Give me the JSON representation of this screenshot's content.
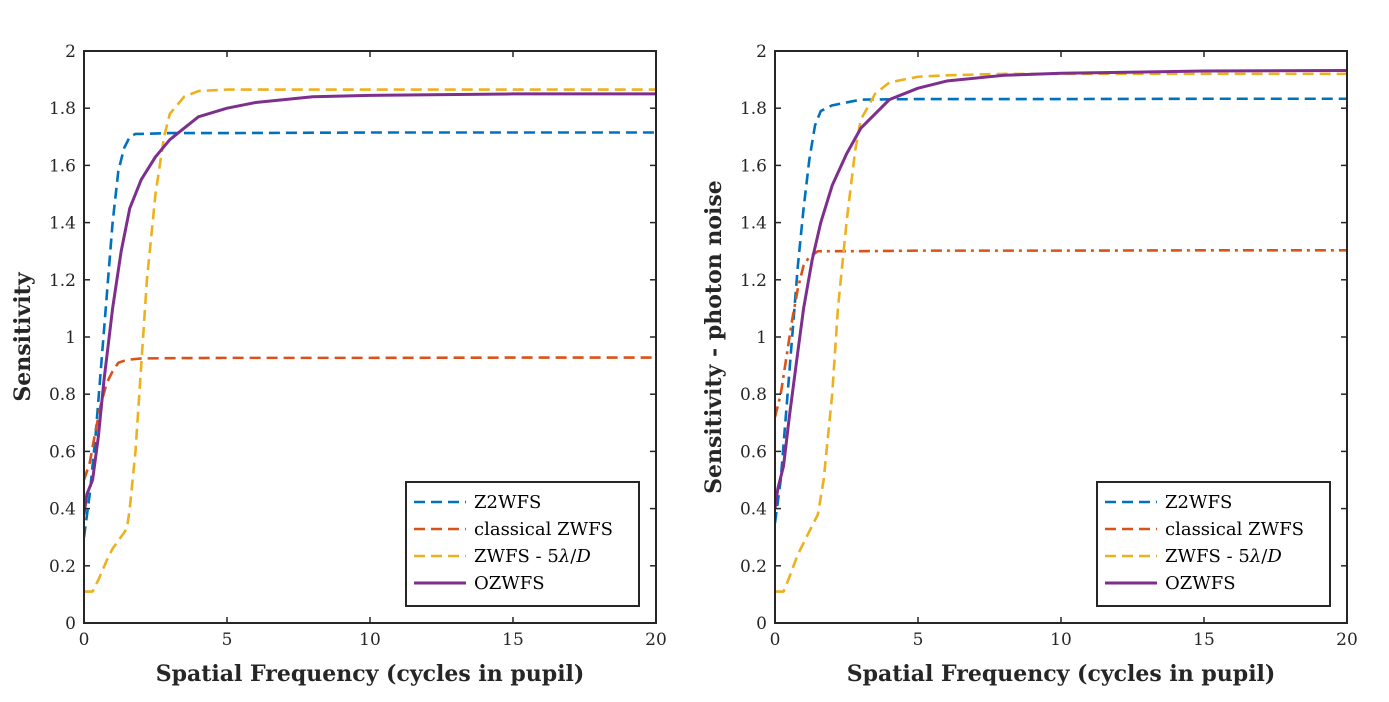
{
  "chart_data": [
    {
      "type": "line",
      "title": "",
      "xlabel": "Spatial Frequency (cycles in pupil)",
      "ylabel": "Sensitivity",
      "xlim": [
        0,
        20
      ],
      "ylim": [
        0,
        2
      ],
      "xticks": [
        0,
        5,
        10,
        15,
        20
      ],
      "yticks": [
        0,
        0.2,
        0.4,
        0.6,
        0.8,
        1,
        1.2,
        1.4,
        1.6,
        1.8,
        2
      ],
      "xtick_labels": [
        "0",
        "5",
        "10",
        "15",
        "20"
      ],
      "ytick_labels": [
        "0",
        "0.2",
        "0.4",
        "0.6",
        "0.8",
        "1",
        "1.2",
        "1.4",
        "1.6",
        "1.8",
        "2"
      ],
      "legend_position": "bottom-right",
      "series": [
        {
          "name": "Z2WFS",
          "style": "dashed",
          "color": "#0072BD",
          "x": [
            0,
            0.2,
            0.4,
            0.6,
            0.8,
            1.0,
            1.2,
            1.4,
            1.6,
            1.8,
            2.0,
            3.0,
            5,
            10,
            15,
            20
          ],
          "y": [
            0.3,
            0.45,
            0.65,
            0.9,
            1.15,
            1.4,
            1.58,
            1.66,
            1.7,
            1.71,
            1.71,
            1.713,
            1.713,
            1.715,
            1.715,
            1.715
          ]
        },
        {
          "name": "classical ZWFS",
          "style": "dashed",
          "color": "#D95319",
          "x": [
            0,
            0.2,
            0.4,
            0.6,
            0.8,
            1.0,
            1.2,
            1.5,
            2.0,
            3,
            5,
            10,
            15,
            20
          ],
          "y": [
            0.5,
            0.56,
            0.67,
            0.77,
            0.84,
            0.88,
            0.91,
            0.92,
            0.925,
            0.926,
            0.927,
            0.927,
            0.928,
            0.928
          ]
        },
        {
          "name": "ZWFS - 5λ/D",
          "style": "dashed",
          "color": "#EDB120",
          "x": [
            0,
            0.3,
            0.5,
            0.8,
            1.0,
            1.5,
            1.6,
            1.8,
            2.0,
            2.2,
            2.5,
            2.8,
            3.0,
            3.5,
            4,
            5,
            6,
            10,
            15,
            20
          ],
          "y": [
            0.11,
            0.11,
            0.15,
            0.22,
            0.26,
            0.33,
            0.4,
            0.6,
            0.9,
            1.2,
            1.5,
            1.7,
            1.78,
            1.84,
            1.86,
            1.865,
            1.865,
            1.865,
            1.865,
            1.865
          ]
        },
        {
          "name": "OZWFS",
          "style": "solid",
          "color": "#7E2F8E",
          "x": [
            0,
            0.1,
            0.3,
            0.5,
            0.7,
            1.0,
            1.3,
            1.6,
            2.0,
            2.5,
            3.0,
            3.5,
            4.0,
            5,
            6,
            8,
            10,
            15,
            20
          ],
          "y": [
            0.38,
            0.45,
            0.5,
            0.65,
            0.85,
            1.1,
            1.3,
            1.45,
            1.55,
            1.63,
            1.69,
            1.73,
            1.77,
            1.8,
            1.82,
            1.84,
            1.845,
            1.85,
            1.85
          ]
        }
      ]
    },
    {
      "type": "line",
      "title": "",
      "xlabel": "Spatial Frequency (cycles in pupil)",
      "ylabel": "Sensitivity - photon noise",
      "xlim": [
        0,
        20
      ],
      "ylim": [
        0,
        2
      ],
      "xticks": [
        0,
        5,
        10,
        15,
        20
      ],
      "yticks": [
        0,
        0.2,
        0.4,
        0.6,
        0.8,
        1,
        1.2,
        1.4,
        1.6,
        1.8,
        2
      ],
      "xtick_labels": [
        "0",
        "5",
        "10",
        "15",
        "20"
      ],
      "ytick_labels": [
        "0",
        "0.2",
        "0.4",
        "0.6",
        "0.8",
        "1",
        "1.2",
        "1.4",
        "1.6",
        "1.8",
        "2"
      ],
      "legend_position": "bottom-right",
      "series": [
        {
          "name": "Z2WFS",
          "style": "dashed",
          "color": "#0072BD",
          "x": [
            0,
            0.2,
            0.4,
            0.6,
            0.8,
            1.0,
            1.2,
            1.4,
            1.6,
            2.0,
            3.0,
            5,
            10,
            15,
            20
          ],
          "y": [
            0.35,
            0.5,
            0.75,
            1.0,
            1.25,
            1.45,
            1.62,
            1.74,
            1.79,
            1.81,
            1.83,
            1.832,
            1.832,
            1.833,
            1.833
          ]
        },
        {
          "name": "classical ZWFS",
          "style": "dashdot",
          "color": "#D95319",
          "x": [
            0,
            0.2,
            0.4,
            0.6,
            0.8,
            1.0,
            1.2,
            1.5,
            2.0,
            3,
            5,
            10,
            15,
            20
          ],
          "y": [
            0.72,
            0.8,
            0.93,
            1.06,
            1.17,
            1.25,
            1.28,
            1.3,
            1.3,
            1.3,
            1.302,
            1.302,
            1.303,
            1.303
          ]
        },
        {
          "name": "ZWFS - 5λ/D",
          "style": "dashed",
          "color": "#EDB120",
          "x": [
            0,
            0.3,
            0.5,
            0.8,
            1.0,
            1.5,
            1.7,
            2.0,
            2.2,
            2.5,
            2.8,
            3.0,
            3.5,
            4,
            5,
            6,
            8,
            10,
            15,
            20
          ],
          "y": [
            0.11,
            0.11,
            0.16,
            0.24,
            0.28,
            0.38,
            0.5,
            0.8,
            1.1,
            1.4,
            1.65,
            1.76,
            1.85,
            1.89,
            1.91,
            1.915,
            1.92,
            1.92,
            1.92,
            1.92
          ]
        },
        {
          "name": "OZWFS",
          "style": "solid",
          "color": "#7E2F8E",
          "x": [
            0,
            0.1,
            0.3,
            0.5,
            0.8,
            1.0,
            1.3,
            1.6,
            2.0,
            2.5,
            3.0,
            4.0,
            5,
            6,
            8,
            10,
            15,
            20
          ],
          "y": [
            0.4,
            0.47,
            0.55,
            0.72,
            0.95,
            1.1,
            1.27,
            1.4,
            1.53,
            1.64,
            1.73,
            1.83,
            1.87,
            1.895,
            1.915,
            1.922,
            1.93,
            1.932
          ]
        }
      ]
    }
  ]
}
